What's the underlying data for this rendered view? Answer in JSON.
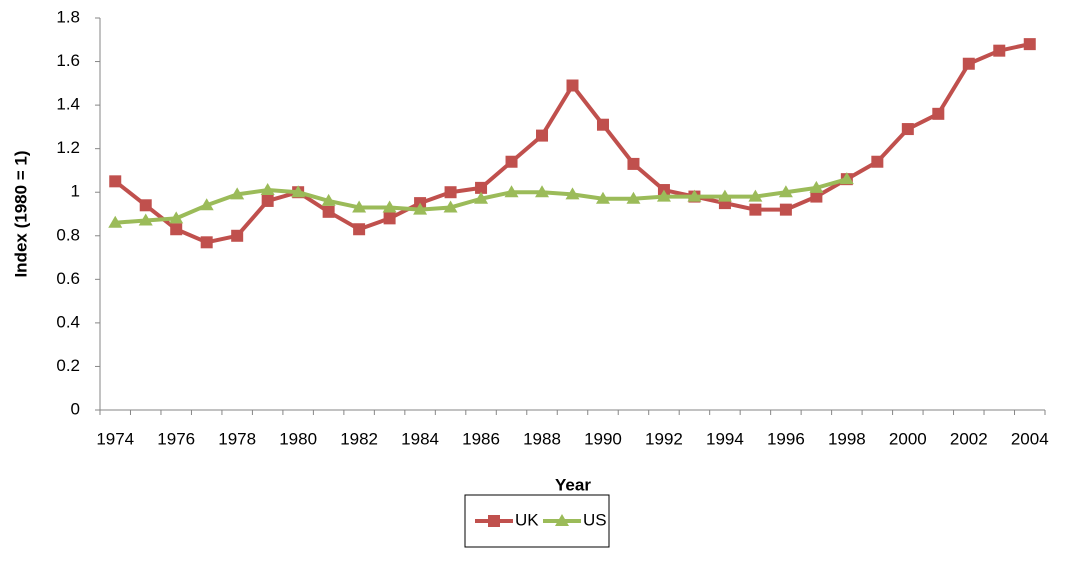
{
  "chart_data": {
    "type": "line",
    "x_label": "Year",
    "y_label": "Index (1980 = 1)",
    "categories": [
      "1974",
      null,
      "1976",
      null,
      "1978",
      null,
      "1980",
      null,
      "1982",
      null,
      "1984",
      null,
      "1986",
      null,
      "1988",
      null,
      "1990",
      null,
      "1992",
      null,
      "1994",
      null,
      "1996",
      null,
      "1998",
      null,
      "2000",
      null,
      "2002",
      null,
      "2004"
    ],
    "series": [
      {
        "name": "UK",
        "color": "#c0504d",
        "marker": "square",
        "values": [
          1.05,
          0.94,
          0.83,
          0.77,
          0.8,
          0.96,
          1.0,
          0.91,
          0.83,
          0.88,
          0.95,
          1.0,
          1.02,
          1.14,
          1.26,
          1.49,
          1.31,
          1.13,
          1.01,
          0.98,
          0.95,
          0.92,
          0.92,
          0.98,
          1.06,
          1.14,
          1.29,
          1.36,
          1.59,
          1.65,
          1.68
        ]
      },
      {
        "name": "US",
        "color": "#9bbb59",
        "marker": "triangle",
        "values": [
          0.86,
          0.87,
          0.88,
          0.94,
          0.99,
          1.01,
          1.0,
          0.96,
          0.93,
          0.93,
          0.92,
          0.93,
          0.97,
          1.0,
          1.0,
          0.99,
          0.97,
          0.97,
          0.98,
          0.98,
          0.98,
          0.98,
          1.0,
          1.02,
          1.06,
          null,
          null,
          null,
          null,
          null,
          null
        ]
      }
    ],
    "ylim": [
      0,
      1.8
    ],
    "yticks": [
      0,
      0.2,
      0.4,
      0.6,
      0.8,
      1,
      1.2,
      1.4,
      1.6,
      1.8
    ],
    "grid": false,
    "legend": "bottom"
  }
}
